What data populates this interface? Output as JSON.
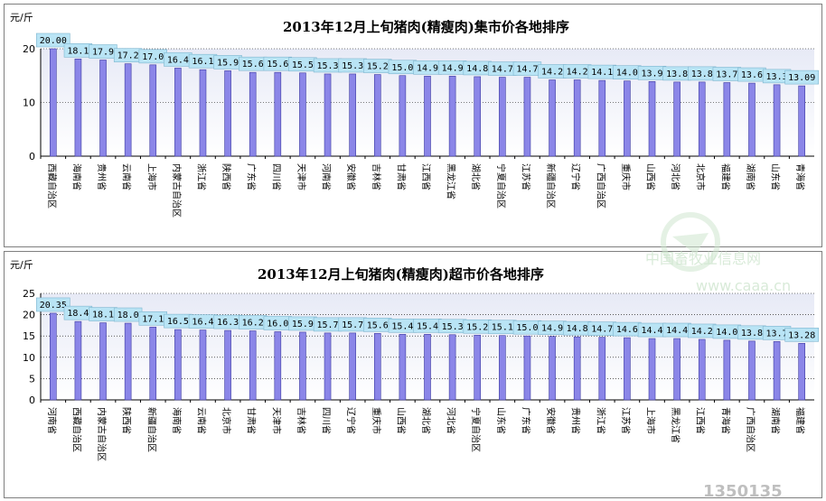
{
  "chart_data": [
    {
      "type": "bar",
      "title": "2013年12月上旬猪肉(精瘦肉)集市价各地排序",
      "ylabel": "元/斤",
      "ylim": [
        0,
        20
      ],
      "yticks": [
        0,
        10,
        20
      ],
      "grid": true,
      "legend": "none",
      "categories": [
        "西藏自治区",
        "海南省",
        "贵州省",
        "云南省",
        "上海市",
        "内蒙古自治区",
        "浙江省",
        "陕西省",
        "广东省",
        "四川省",
        "天津市",
        "河南省",
        "安徽省",
        "吉林省",
        "甘肃省",
        "江西省",
        "黑龙江省",
        "湖北省",
        "宁夏自治区",
        "江苏省",
        "新疆自治区",
        "辽宁省",
        "广西自治区",
        "重庆市",
        "山西省",
        "河北省",
        "北京市",
        "福建省",
        "湖南省",
        "山东省",
        "青海省"
      ],
      "values": [
        20.0,
        18.1,
        17.9,
        17.2,
        17.0,
        16.4,
        16.1,
        15.9,
        15.6,
        15.6,
        15.5,
        15.3,
        15.3,
        15.2,
        15.0,
        14.9,
        14.9,
        14.8,
        14.7,
        14.7,
        14.2,
        14.2,
        14.1,
        14.0,
        13.9,
        13.8,
        13.8,
        13.7,
        13.6,
        13.3,
        13.09
      ],
      "labels": [
        "20.00",
        "18.1",
        "17.9",
        "17.2",
        "17.0",
        "16.4",
        "16.1",
        "15.9",
        "15.6",
        "15.6",
        "15.5",
        "15.3",
        "15.3",
        "15.2",
        "15.0",
        "14.9",
        "14.9",
        "14.8",
        "14.7",
        "14.7",
        "14.2",
        "14.2",
        "14.1",
        "14.0",
        "13.9",
        "13.8",
        "13.8",
        "13.7",
        "13.6",
        "13.3",
        "13.09"
      ]
    },
    {
      "type": "bar",
      "title": "2013年12月上旬猪肉(精瘦肉)超市价各地排序",
      "ylabel": "元/斤",
      "ylim": [
        0,
        25
      ],
      "yticks": [
        0,
        5,
        10,
        15,
        20,
        25
      ],
      "grid": true,
      "legend": "none",
      "categories": [
        "河南省",
        "西藏自治区",
        "内蒙古自治区",
        "陕西省",
        "新疆自治区",
        "海南省",
        "云南省",
        "北京市",
        "甘肃省",
        "天津市",
        "吉林省",
        "四川省",
        "辽宁省",
        "重庆市",
        "山西省",
        "湖北省",
        "河北省",
        "宁夏自治区",
        "山东省",
        "广东省",
        "安徽省",
        "贵州省",
        "浙江省",
        "江苏省",
        "上海市",
        "黑龙江省",
        "江西省",
        "青海省",
        "广西自治区",
        "湖南省",
        "福建省"
      ],
      "values": [
        20.35,
        18.4,
        18.1,
        18.0,
        17.1,
        16.5,
        16.4,
        16.3,
        16.2,
        16.0,
        15.9,
        15.7,
        15.7,
        15.6,
        15.4,
        15.4,
        15.3,
        15.2,
        15.1,
        15.0,
        14.9,
        14.8,
        14.7,
        14.6,
        14.4,
        14.4,
        14.2,
        14.0,
        13.8,
        13.7,
        13.28
      ],
      "labels": [
        "20.35",
        "18.4",
        "18.1",
        "18.0",
        "17.1",
        "16.5",
        "16.4",
        "16.3",
        "16.2",
        "16.0",
        "15.9",
        "15.7",
        "15.7",
        "15.6",
        "15.4",
        "15.4",
        "15.3",
        "15.2",
        "15.1",
        "15.0",
        "14.9",
        "14.8",
        "14.7",
        "14.6",
        "14.4",
        "14.4",
        "14.2",
        "14.0",
        "13.8",
        "13.7",
        "13.28"
      ]
    }
  ],
  "watermarks": {
    "site_name": "中国畜牧业信息网",
    "site_url": "www.caaa.cn",
    "corner_logo": "1350135"
  },
  "colors": {
    "bar_fill": "#8b86e8",
    "bar_stroke": "#3c3aa0",
    "label_box": "#b9e4f5",
    "plot_bg_top": "#e7eaf6",
    "plot_bg_bottom": "#ffffff",
    "watermark": "#cfe6cf"
  }
}
